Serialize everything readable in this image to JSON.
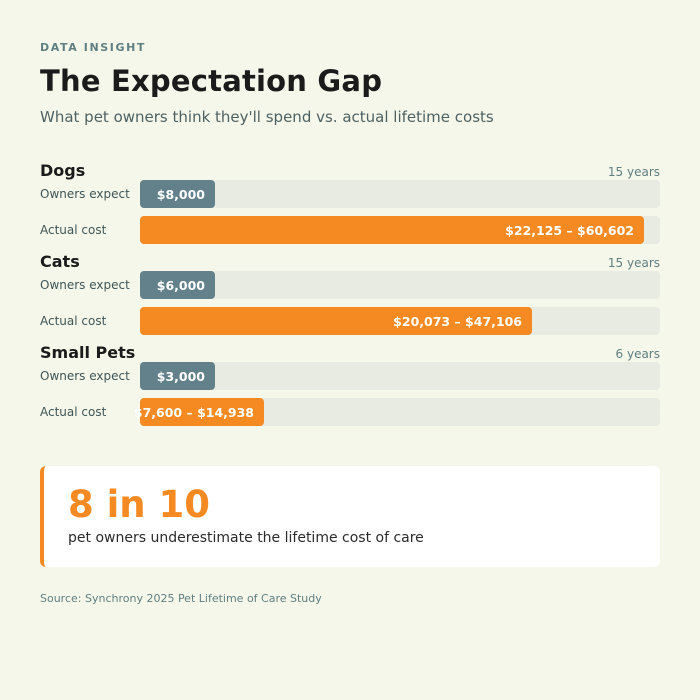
{
  "header": {
    "eyebrow": "DATA INSIGHT",
    "title": "The Expectation Gap",
    "subtitle": "What pet owners think they'll spend vs. actual lifetime costs"
  },
  "colors": {
    "expect": "#62818a",
    "actual": "#f58a22",
    "track": "#e8ebe1",
    "background": "#f5f7ea"
  },
  "chart_data": {
    "type": "bar",
    "orientation": "horizontal",
    "scale_max": 62500,
    "row_labels": {
      "expect": "Owners expect",
      "actual": "Actual cost"
    },
    "groups": [
      {
        "name": "Dogs",
        "years": "15 years",
        "expect": {
          "value": 8000,
          "label": "$8,000"
        },
        "actual": {
          "low": 22125,
          "high": 60602,
          "label": "$22,125 – $60,602"
        }
      },
      {
        "name": "Cats",
        "years": "15 years",
        "expect": {
          "value": 6000,
          "label": "$6,000"
        },
        "actual": {
          "low": 20073,
          "high": 47106,
          "label": "$20,073 – $47,106"
        }
      },
      {
        "name": "Small Pets",
        "years": "6 years",
        "expect": {
          "value": 3000,
          "label": "$3,000"
        },
        "actual": {
          "low": 7600,
          "high": 14938,
          "label": "$7,600 – $14,938"
        }
      }
    ]
  },
  "stat": {
    "number": "8 in 10",
    "text": "pet owners underestimate the lifetime cost of care"
  },
  "source": "Source: Synchrony 2025 Pet Lifetime of Care Study"
}
